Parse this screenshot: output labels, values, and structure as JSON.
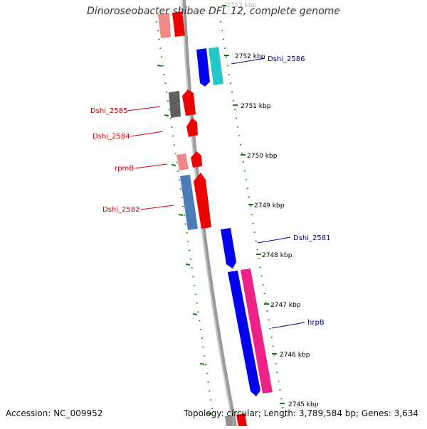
{
  "title": "Dinoroseobacter shibae DFL 12, complete genome",
  "footer": {
    "accession": "Accession: NC_009952",
    "stats": "Topology: circular; Length: 3,789,584 bp; Genes: 3,634"
  },
  "ticks": [
    {
      "label": "2753 kbp"
    },
    {
      "label": "2752 kbp"
    },
    {
      "label": "2751 kbp"
    },
    {
      "label": "2750 kbp"
    },
    {
      "label": "2749 kbp"
    },
    {
      "label": "2748 kbp"
    },
    {
      "label": "2747 kbp"
    },
    {
      "label": "2746 kbp"
    },
    {
      "label": "2745 kbp"
    }
  ],
  "gene_labels": {
    "dshi_2586": "Dshi_2586",
    "dshi_2585": "Dshi_2585",
    "dshi_2584": "Dshi_2584",
    "rpmb": "rpmB",
    "dshi_2582": "Dshi_2582",
    "dshi_2581": "Dshi_2581",
    "hrpb": "hrpB"
  },
  "colors": {
    "plus_strand_label": "#cc0000",
    "minus_strand_label": "#000099",
    "backbone": "#7a7a7a",
    "tick": "#1a7a1a"
  }
}
